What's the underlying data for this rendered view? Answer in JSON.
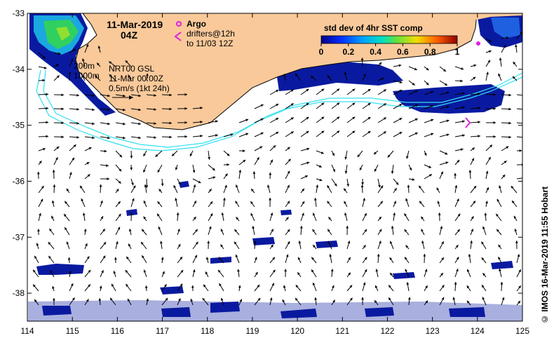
{
  "map": {
    "date_label": "11-Mar-2019",
    "time_label": "04Z",
    "argo_label": "Argo",
    "drifters_label": "drifters@12h",
    "drifters_range": "to 11/03 12Z",
    "isobath_200": "200m",
    "isobath_1000": "1000m",
    "product_label": "NRT00 GSL",
    "product_time": "11-Mar 00:00Z",
    "vector_scale": "0.5m/s (1kt 24h)",
    "credit": "© IMOS 16-Mar-2019 11:55 Hobart",
    "colors": {
      "land": "#f9c99a",
      "coast": "#000000",
      "isobath": "#33e0f0",
      "argo": "#e020e0"
    }
  },
  "colorbar": {
    "title": "std dev of 4hr SST comp",
    "ticks": [
      "0",
      "0.2",
      "0.4",
      "0.6",
      "0.8",
      "1"
    ]
  },
  "axes": {
    "x_ticks": [
      "114",
      "115",
      "116",
      "117",
      "118",
      "119",
      "120",
      "121",
      "122",
      "123",
      "124",
      "125"
    ],
    "y_ticks": [
      "-33",
      "-34",
      "-35",
      "-36",
      "-37",
      "-38"
    ]
  },
  "chart_data": {
    "type": "map",
    "lon_range": [
      114,
      125
    ],
    "lat_range": [
      -38.5,
      -33
    ],
    "colorbar_range": [
      0,
      1
    ]
  }
}
